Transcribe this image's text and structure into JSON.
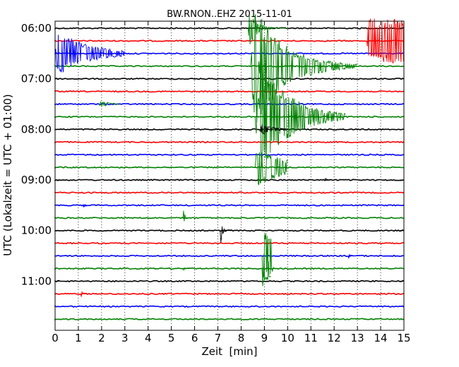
{
  "chart_data": {
    "type": "line",
    "title": "BW.RNON..EHZ 2015-11-01",
    "xlabel": "Zeit  [min]",
    "ylabel": "UTC (Lokalzeit = UTC + 01:00)",
    "xlim": [
      0,
      15
    ],
    "x_ticks": [
      "0",
      "1",
      "2",
      "3",
      "4",
      "5",
      "6",
      "7",
      "8",
      "9",
      "10",
      "11",
      "12",
      "13",
      "14",
      "15"
    ],
    "y_ticks": [
      {
        "label": "06:00",
        "hour": 6.0
      },
      {
        "label": "07:00",
        "hour": 7.0
      },
      {
        "label": "08:00",
        "hour": 8.0
      },
      {
        "label": "09:00",
        "hour": 9.0
      },
      {
        "label": "10:00",
        "hour": 10.0
      },
      {
        "label": "11:00",
        "hour": 11.0
      }
    ],
    "trace_start_hour": 6.0,
    "trace_interval_min": 15,
    "trace_count": 24,
    "trace_colors": [
      "#000000",
      "#ff0000",
      "#0000ff",
      "#008000"
    ],
    "grid": "vertical dotted",
    "events": [
      {
        "trace": 0,
        "start_min": 8.3,
        "end_min": 10.0,
        "amp": 1.8,
        "decay": 2.5,
        "color": "#008000"
      },
      {
        "trace": 1,
        "start_min": 13.4,
        "end_min": 15.0,
        "amp": 1.8,
        "decay": 0,
        "color": "#ff0000"
      },
      {
        "trace": 2,
        "start_min": 0.0,
        "end_min": 3.0,
        "amp": 2.0,
        "decay": 1.0,
        "color": "#0000ff"
      },
      {
        "trace": 3,
        "start_min": 8.4,
        "end_min": 13.0,
        "amp": 5.5,
        "decay": 1.6,
        "color": "#008000"
      },
      {
        "trace": 6,
        "start_min": 1.9,
        "end_min": 2.8,
        "amp": 0.3,
        "decay": 1.0,
        "color": "#008000"
      },
      {
        "trace": 7,
        "start_min": 8.6,
        "end_min": 12.5,
        "amp": 5.5,
        "decay": 1.4,
        "color": "#008000"
      },
      {
        "trace": 8,
        "start_min": 8.8,
        "end_min": 10.0,
        "amp": 0.5,
        "decay": 1.0,
        "color": "#000000"
      },
      {
        "trace": 11,
        "start_min": 8.6,
        "end_min": 10.0,
        "amp": 1.7,
        "decay": 0.5,
        "color": "#008000"
      },
      {
        "trace": 15,
        "start_min": 5.5,
        "end_min": 5.8,
        "amp": 1.4,
        "decay": 3.0,
        "color": "#008000"
      },
      {
        "trace": 16,
        "start_min": 7.1,
        "end_min": 7.6,
        "amp": 1.5,
        "decay": 3.0,
        "color": "#000000"
      },
      {
        "trace": 18,
        "start_min": 12.6,
        "end_min": 12.9,
        "amp": 0.5,
        "decay": 3.0,
        "color": "#0000ff"
      },
      {
        "trace": 18,
        "start_min": 8.9,
        "end_min": 9.4,
        "amp": 2.5,
        "decay": 0.3,
        "color": "#008000"
      },
      {
        "trace": 19,
        "start_min": 5.5,
        "end_min": 5.8,
        "amp": 0.4,
        "decay": 3.0,
        "color": "#008000"
      },
      {
        "trace": 19,
        "start_min": 8.9,
        "end_min": 9.3,
        "amp": 1.8,
        "decay": 0.5,
        "color": "#008000"
      },
      {
        "trace": 21,
        "start_min": 1.1,
        "end_min": 1.4,
        "amp": 0.5,
        "decay": 3.0,
        "color": "#ff0000"
      },
      {
        "trace": 14,
        "start_min": 1.2,
        "end_min": 1.5,
        "amp": 0.4,
        "decay": 3.0,
        "color": "#0000ff"
      },
      {
        "trace": 12,
        "start_min": 11.6,
        "end_min": 11.9,
        "amp": 0.4,
        "decay": 3.0,
        "color": "#000000"
      }
    ]
  }
}
